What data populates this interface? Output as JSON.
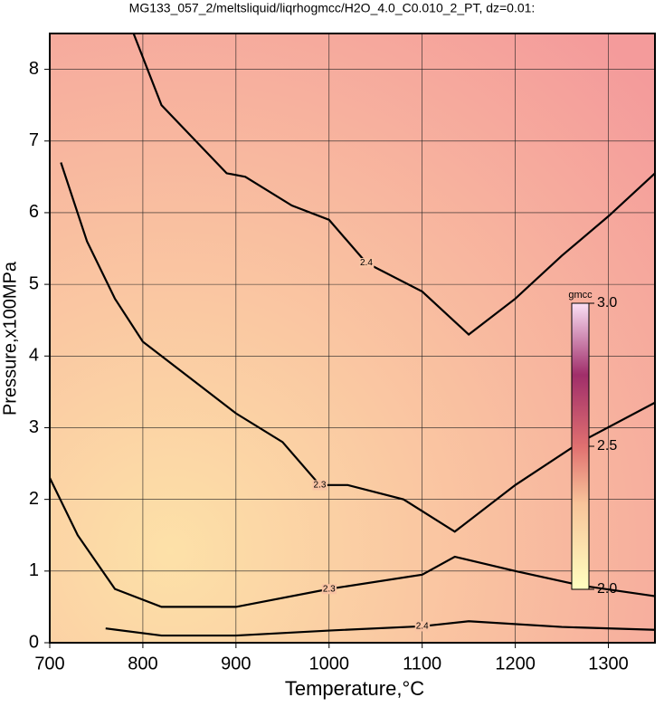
{
  "chart_data": {
    "type": "contour",
    "title": "MG133_057_2/meltsliquid/liqrhogmcc/H2O_4.0_C0.010_2_PT, dz=0.01:",
    "x_label": "Temperature,°C",
    "y_label": "Pressure,x100MPa",
    "xlim": [
      700,
      1350
    ],
    "ylim": [
      0,
      8.5
    ],
    "xticks": [
      700,
      800,
      900,
      1000,
      1100,
      1200,
      1300
    ],
    "yticks": [
      0,
      1,
      2,
      3,
      4,
      5,
      6,
      7,
      8
    ],
    "grid": true,
    "colorbar": {
      "label": "gmcc",
      "lim": [
        2,
        3
      ],
      "ticks": [
        {
          "value": 2,
          "label": "2.0"
        },
        {
          "value": 2.5,
          "label": "2.5"
        },
        {
          "value": 3,
          "label": "3.0"
        }
      ]
    },
    "contours": [
      {
        "level": 2.4,
        "x": [
          790,
          820,
          890,
          910,
          960,
          1000,
          1040,
          1100,
          1150,
          1200,
          1250,
          1300,
          1350
        ],
        "y": [
          8.5,
          7.5,
          6.55,
          6.5,
          6.1,
          5.9,
          5.3,
          4.9,
          4.3,
          4.8,
          5.4,
          5.95,
          6.55
        ]
      },
      {
        "level": 2.3,
        "x": [
          712,
          740,
          770,
          800,
          850,
          900,
          950,
          990,
          1020,
          1080,
          1135,
          1200,
          1270,
          1350
        ],
        "y": [
          6.7,
          5.6,
          4.8,
          4.2,
          3.7,
          3.2,
          2.8,
          2.2,
          2.2,
          2.0,
          1.55,
          2.2,
          2.8,
          3.35
        ]
      },
      {
        "level": 2.3,
        "x": [
          700,
          730,
          770,
          820,
          900,
          1000,
          1100,
          1135,
          1200,
          1270,
          1350
        ],
        "y": [
          2.3,
          1.5,
          0.75,
          0.5,
          0.5,
          0.75,
          0.95,
          1.2,
          1.0,
          0.8,
          0.65
        ]
      },
      {
        "level": 2.4,
        "x": [
          760,
          820,
          900,
          1000,
          1100,
          1150,
          1250,
          1350
        ],
        "y": [
          0.2,
          0.1,
          0.1,
          0.17,
          0.23,
          0.3,
          0.22,
          0.18
        ]
      }
    ]
  }
}
